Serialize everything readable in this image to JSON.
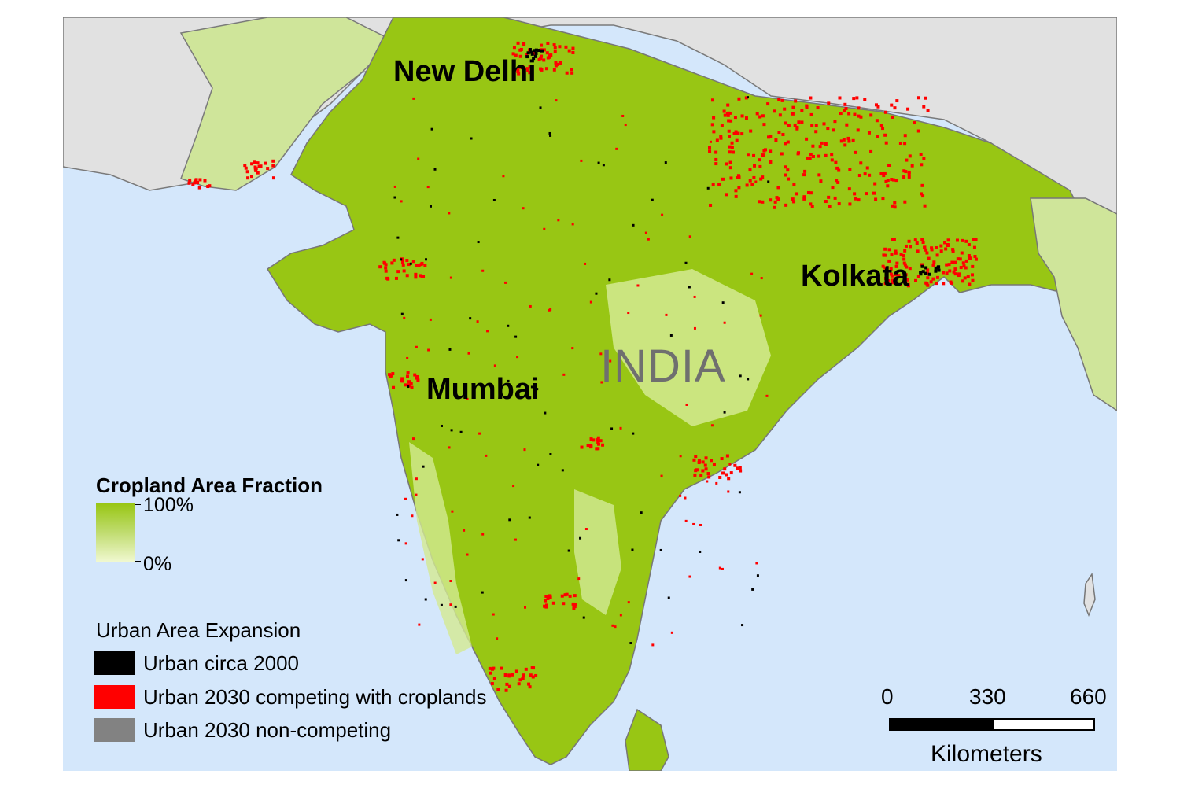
{
  "map": {
    "country_label": "INDIA",
    "cities": {
      "new_delhi": "New Delhi",
      "mumbai": "Mumbai",
      "kolkata": "Kolkata"
    },
    "colors": {
      "sea": "#d4e7fb",
      "foreign_land": "#e1e1e1",
      "cropland_high": "#98c614",
      "cropland_low": "#f0f8d0",
      "urban_2000": "#000000",
      "urban_2030_competing": "#ff0000",
      "urban_2030_noncompeting": "#828282"
    }
  },
  "legend": {
    "cropland_title": "Cropland Area Fraction",
    "cropland_max": "100%",
    "cropland_min": "0%",
    "urban_title": "Urban Area Expansion",
    "items": [
      {
        "label": "Urban circa 2000",
        "color": "#000000"
      },
      {
        "label": "Urban 2030 competing with croplands",
        "color": "#ff0000"
      },
      {
        "label": "Urban 2030 non-competing",
        "color": "#828282"
      }
    ]
  },
  "scale_bar": {
    "ticks": [
      "0",
      "330",
      "660"
    ],
    "unit": "Kilometers"
  }
}
